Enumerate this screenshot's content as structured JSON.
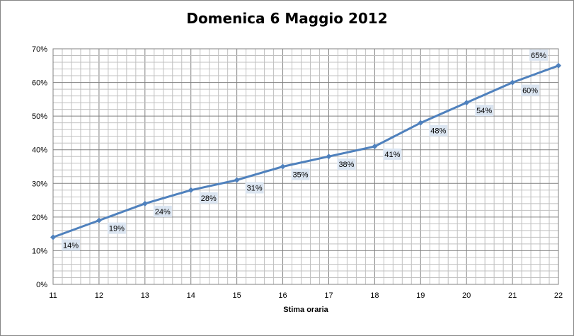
{
  "chart_data": {
    "type": "line",
    "title": "Domenica 6 Maggio 2012",
    "xlabel": "Stima oraria",
    "ylabel": "",
    "x": [
      11,
      12,
      13,
      14,
      15,
      16,
      17,
      18,
      19,
      20,
      21,
      22
    ],
    "series": [
      {
        "values": [
          14,
          19,
          24,
          28,
          31,
          35,
          38,
          41,
          48,
          54,
          60,
          65
        ],
        "labels": [
          "14%",
          "19%",
          "24%",
          "28%",
          "31%",
          "35%",
          "38%",
          "41%",
          "48%",
          "54%",
          "60%",
          "65%"
        ]
      }
    ],
    "xlim": [
      11,
      22
    ],
    "ylim": [
      0,
      70
    ],
    "x_ticks": [
      "11",
      "12",
      "13",
      "14",
      "15",
      "16",
      "17",
      "18",
      "19",
      "20",
      "21",
      "22"
    ],
    "y_ticks": [
      "0%",
      "10%",
      "20%",
      "30%",
      "40%",
      "50%",
      "60%",
      "70%"
    ],
    "grid": "major and minor",
    "legend": "none",
    "colors": {
      "line": "#4f81bd",
      "marker": "#4f81bd",
      "label_box": "#dbe5f1",
      "grid_major": "#808080",
      "grid_minor": "#c0c0c0"
    }
  }
}
